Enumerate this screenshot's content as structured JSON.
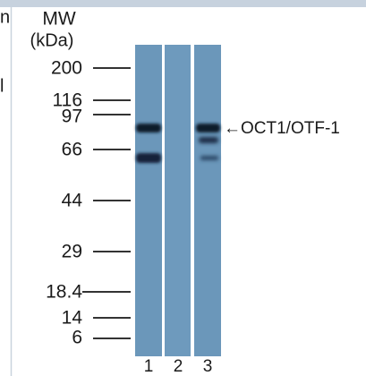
{
  "edge_text": [
    "n",
    "l"
  ],
  "header": {
    "mw": "MW",
    "unit": "(kDa)"
  },
  "markers": [
    "200",
    "116",
    "97",
    "66",
    "44",
    "29",
    "18.4",
    "14",
    "6"
  ],
  "band_label": "←OCT1/OTF-1",
  "lanes": [
    "1",
    "2",
    "3"
  ]
}
